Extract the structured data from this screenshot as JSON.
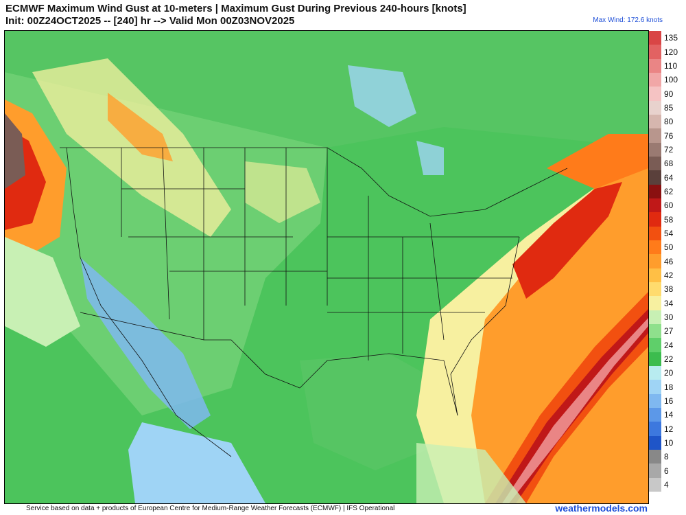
{
  "header": {
    "title_line1": "ECMWF Maximum Wind Gust at 10-meters | Maximum Gust During Previous 240-hours [knots]",
    "title_line2": "Init: 00Z24OCT2025 -- [240] hr --> Valid Mon 00Z03NOV2025",
    "max_wind": "Max Wind: 172.6 knots"
  },
  "footer": {
    "credit": "Service based on data + products of European Centre for Medium-Range Weather Forecasts (ECMWF) | IFS Operational",
    "brand": "weathermodels.com"
  },
  "legend": {
    "units": "knots",
    "levels": [
      {
        "label": "135",
        "color": "#d94545"
      },
      {
        "label": "120",
        "color": "#e26262"
      },
      {
        "label": "110",
        "color": "#ea8585"
      },
      {
        "label": "100",
        "color": "#f1a7a7"
      },
      {
        "label": "90",
        "color": "#f5c3c3"
      },
      {
        "label": "85",
        "color": "#e8d2cd"
      },
      {
        "label": "80",
        "color": "#d6b6ae"
      },
      {
        "label": "76",
        "color": "#b8968d"
      },
      {
        "label": "72",
        "color": "#9a7a72"
      },
      {
        "label": "68",
        "color": "#7a5c55"
      },
      {
        "label": "64",
        "color": "#5a403b"
      },
      {
        "label": "62",
        "color": "#8a1010"
      },
      {
        "label": "60",
        "color": "#c01818"
      },
      {
        "label": "58",
        "color": "#e02a10"
      },
      {
        "label": "54",
        "color": "#f25010"
      },
      {
        "label": "50",
        "color": "#ff7b1a"
      },
      {
        "label": "46",
        "color": "#ff9d2c"
      },
      {
        "label": "42",
        "color": "#ffbf45"
      },
      {
        "label": "38",
        "color": "#ffdb6e"
      },
      {
        "label": "34",
        "color": "#f7f0a0"
      },
      {
        "label": "30",
        "color": "#c8f0b4"
      },
      {
        "label": "27",
        "color": "#8fe08c"
      },
      {
        "label": "24",
        "color": "#5fcf6a"
      },
      {
        "label": "22",
        "color": "#3cbc4e"
      },
      {
        "label": "20",
        "color": "#b8ecf0"
      },
      {
        "label": "18",
        "color": "#9fd4f5"
      },
      {
        "label": "16",
        "color": "#7fb8f0"
      },
      {
        "label": "14",
        "color": "#5c98e8"
      },
      {
        "label": "12",
        "color": "#3d78de"
      },
      {
        "label": "10",
        "color": "#1f55c8"
      },
      {
        "label": "8",
        "color": "#888888"
      },
      {
        "label": "6",
        "color": "#a8a8a8"
      },
      {
        "label": "4",
        "color": "#c8c8c8"
      }
    ]
  },
  "map": {
    "region": "North America",
    "colors": {
      "land_base": "#5fc96a",
      "ocean_pacific": "#4cc45c",
      "land_light": "#8fe08c",
      "plains_yellow": "#f7f0a0",
      "orange": "#ff9d2c",
      "red": "#e02a10",
      "dark_red": "#8a1010",
      "brown": "#7a5c55",
      "pink": "#ea8585",
      "blue": "#7fb8f0",
      "cyan": "#9fd4f5",
      "gray_low": "#a8a8a8",
      "boundary": "#111111"
    }
  }
}
